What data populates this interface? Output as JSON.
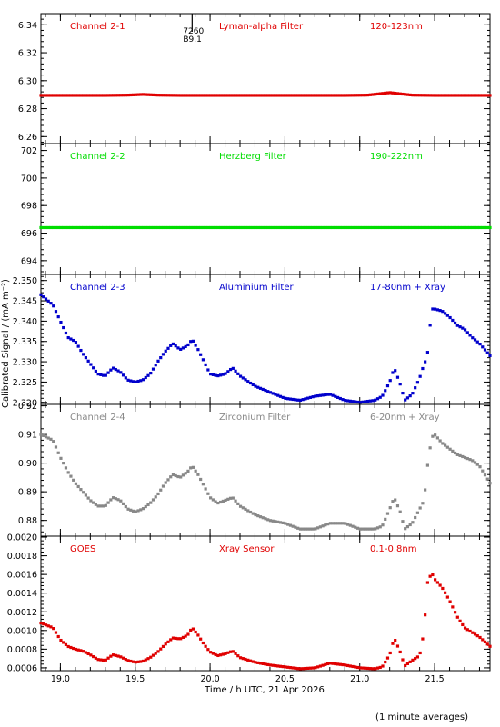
{
  "chart_data": [
    {
      "type": "scatter",
      "panel_labels": {
        "channel": "Channel 2-1",
        "filter": "Lyman-alpha Filter",
        "band": "120-123nm"
      },
      "annotation": {
        "x": 19.88,
        "text1": "7260",
        "text2": "B9.1"
      },
      "ylim": [
        6.255,
        6.348
      ],
      "yticks": [
        "6.26",
        "6.28",
        "6.30",
        "6.32",
        "6.34"
      ],
      "color": "#e00000",
      "x": [
        18.87,
        19.1,
        19.3,
        19.45,
        19.55,
        19.65,
        19.8,
        20.0,
        20.3,
        20.6,
        20.9,
        21.05,
        21.12,
        21.2,
        21.28,
        21.35,
        21.5,
        21.7,
        21.87
      ],
      "values": [
        6.2895,
        6.2895,
        6.2895,
        6.2897,
        6.2902,
        6.2897,
        6.2895,
        6.2895,
        6.2895,
        6.2895,
        6.2895,
        6.2897,
        6.2905,
        6.2915,
        6.2905,
        6.2897,
        6.2895,
        6.2895,
        6.2895
      ]
    },
    {
      "type": "scatter",
      "panel_labels": {
        "channel": "Channel 2-2",
        "filter": "Herzberg Filter",
        "band": "190-222nm"
      },
      "ylim": [
        693.0,
        702.5
      ],
      "yticks": [
        "694",
        "696",
        "698",
        "700",
        "702"
      ],
      "color": "#00dd00",
      "x": [
        18.87,
        19.5,
        20.0,
        20.5,
        21.0,
        21.5,
        21.87
      ],
      "values": [
        696.4,
        696.4,
        696.4,
        696.4,
        696.4,
        696.4,
        696.4
      ]
    },
    {
      "type": "scatter",
      "panel_labels": {
        "channel": "Channel 2-3",
        "filter": "Aluminium Filter",
        "band": "17-80nm + Xray"
      },
      "ylim": [
        2.3195,
        2.3515
      ],
      "yticks": [
        "2.320",
        "2.325",
        "2.330",
        "2.335",
        "2.340",
        "2.345",
        "2.350"
      ],
      "color": "#0000cc",
      "x": [
        18.87,
        18.95,
        19.0,
        19.05,
        19.1,
        19.15,
        19.2,
        19.25,
        19.3,
        19.35,
        19.4,
        19.45,
        19.5,
        19.55,
        19.6,
        19.65,
        19.7,
        19.75,
        19.8,
        19.85,
        19.88,
        19.92,
        19.96,
        20.0,
        20.05,
        20.1,
        20.15,
        20.2,
        20.3,
        20.4,
        20.5,
        20.6,
        20.7,
        20.8,
        20.9,
        21.0,
        21.1,
        21.15,
        21.2,
        21.23,
        21.27,
        21.3,
        21.35,
        21.4,
        21.43,
        21.45,
        21.48,
        21.5,
        21.55,
        21.6,
        21.65,
        21.7,
        21.75,
        21.8,
        21.87
      ],
      "values": [
        2.3465,
        2.344,
        2.34,
        2.336,
        2.335,
        2.332,
        2.3295,
        2.327,
        2.3265,
        2.3285,
        2.3275,
        2.3255,
        2.325,
        2.3255,
        2.327,
        2.33,
        2.3325,
        2.3345,
        2.333,
        2.334,
        2.3355,
        2.333,
        2.33,
        2.327,
        2.3265,
        2.327,
        2.3285,
        2.3265,
        2.324,
        2.3225,
        2.321,
        2.3205,
        2.3215,
        2.322,
        2.3205,
        2.32,
        2.3205,
        2.3215,
        2.325,
        2.3285,
        2.3245,
        2.3205,
        2.322,
        2.326,
        2.3295,
        2.331,
        2.343,
        2.343,
        2.3425,
        2.341,
        2.339,
        2.338,
        2.336,
        2.3345,
        2.3315
      ]
    },
    {
      "type": "scatter",
      "panel_labels": {
        "channel": "Channel 2-4",
        "filter": "Zirconium Filter",
        "band": "6-20nm + Xray"
      },
      "ylim": [
        0.8745,
        0.9205
      ],
      "yticks": [
        "0.88",
        "0.89",
        "0.90",
        "0.91",
        "0.92"
      ],
      "color": "#888888",
      "x": [
        18.87,
        18.95,
        19.0,
        19.05,
        19.1,
        19.15,
        19.2,
        19.25,
        19.3,
        19.35,
        19.4,
        19.45,
        19.5,
        19.55,
        19.6,
        19.65,
        19.7,
        19.75,
        19.8,
        19.85,
        19.88,
        19.92,
        19.96,
        20.0,
        20.05,
        20.1,
        20.15,
        20.2,
        20.3,
        20.4,
        20.5,
        20.6,
        20.7,
        20.8,
        20.9,
        21.0,
        21.1,
        21.15,
        21.2,
        21.23,
        21.27,
        21.3,
        21.35,
        21.4,
        21.43,
        21.45,
        21.48,
        21.5,
        21.55,
        21.6,
        21.65,
        21.7,
        21.75,
        21.8,
        21.87
      ],
      "values": [
        0.91,
        0.908,
        0.902,
        0.897,
        0.893,
        0.89,
        0.887,
        0.885,
        0.885,
        0.888,
        0.887,
        0.884,
        0.883,
        0.884,
        0.886,
        0.889,
        0.893,
        0.896,
        0.895,
        0.897,
        0.899,
        0.896,
        0.892,
        0.888,
        0.886,
        0.887,
        0.888,
        0.885,
        0.882,
        0.88,
        0.879,
        0.877,
        0.877,
        0.879,
        0.879,
        0.877,
        0.877,
        0.878,
        0.884,
        0.888,
        0.883,
        0.877,
        0.879,
        0.884,
        0.887,
        0.898,
        0.909,
        0.91,
        0.907,
        0.905,
        0.903,
        0.902,
        0.901,
        0.899,
        0.893
      ]
    },
    {
      "type": "scatter",
      "panel_labels": {
        "channel": "GOES",
        "filter": "Xray Sensor",
        "band": "0.1-0.8nm"
      },
      "ylim": [
        0.00057,
        0.00201
      ],
      "yticks": [
        "0.0006",
        "0.0008",
        "0.0010",
        "0.0012",
        "0.0014",
        "0.0016",
        "0.0018",
        "0.0020"
      ],
      "color": "#e00000",
      "x": [
        18.87,
        18.95,
        19.0,
        19.05,
        19.1,
        19.15,
        19.2,
        19.25,
        19.3,
        19.35,
        19.4,
        19.45,
        19.5,
        19.55,
        19.6,
        19.65,
        19.7,
        19.75,
        19.8,
        19.85,
        19.88,
        19.92,
        19.96,
        20.0,
        20.05,
        20.1,
        20.15,
        20.2,
        20.3,
        20.4,
        20.5,
        20.6,
        20.7,
        20.8,
        20.9,
        21.0,
        21.1,
        21.15,
        21.2,
        21.23,
        21.27,
        21.3,
        21.35,
        21.4,
        21.43,
        21.45,
        21.48,
        21.5,
        21.55,
        21.6,
        21.65,
        21.7,
        21.75,
        21.8,
        21.87
      ],
      "values": [
        0.00108,
        0.00103,
        0.0009,
        0.00083,
        0.0008,
        0.00078,
        0.00074,
        0.00069,
        0.00068,
        0.00074,
        0.00072,
        0.00068,
        0.00066,
        0.00067,
        0.00071,
        0.00077,
        0.00085,
        0.00092,
        0.00091,
        0.00095,
        0.00103,
        0.00095,
        0.00085,
        0.00077,
        0.00073,
        0.00075,
        0.00078,
        0.00071,
        0.00066,
        0.00063,
        0.00061,
        0.00059,
        0.0006,
        0.00065,
        0.00063,
        0.0006,
        0.00059,
        0.00061,
        0.00074,
        0.00092,
        0.00077,
        0.00062,
        0.00068,
        0.00073,
        0.001,
        0.0015,
        0.00162,
        0.00155,
        0.00146,
        0.00132,
        0.00115,
        0.00103,
        0.00098,
        0.00093,
        0.00083
      ]
    }
  ],
  "xaxis": {
    "xlim": [
      18.87,
      21.87
    ],
    "ticks": [
      19.0,
      19.5,
      20.0,
      20.5,
      21.0,
      21.5
    ],
    "tick_labels": [
      "19.0",
      "19.5",
      "20.0",
      "20.5",
      "21.0",
      "21.5"
    ],
    "label": "Time / h UTC, 21 Apr 2026"
  },
  "ylabel": "Calibrated Signal / (mA m⁻²)",
  "footnote": "(1 minute averages)"
}
